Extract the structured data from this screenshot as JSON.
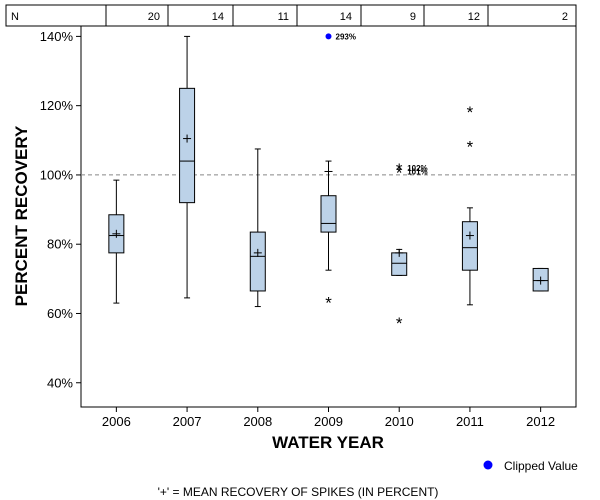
{
  "chart_data": {
    "type": "boxplot",
    "xlabel": "WATER YEAR",
    "ylabel": "PERCENT RECOVERY",
    "ylim": [
      33,
      143
    ],
    "yticks": [
      40,
      60,
      80,
      100,
      120,
      140
    ],
    "ytick_suffix": "%",
    "reference_line": 100,
    "n_header_label": "N",
    "legend": {
      "label": "Clipped Value",
      "color": "#0000ff"
    },
    "footnote": "'+' = MEAN RECOVERY OF SPIKES (IN PERCENT)",
    "categories": [
      {
        "year": "2006",
        "n": "20",
        "whisker_low": 63,
        "q1": 77.5,
        "median": 82.5,
        "q3": 88.5,
        "whisker_high": 98.5,
        "mean": 83,
        "outliers": [],
        "clipped": [],
        "labeled_outliers": []
      },
      {
        "year": "2007",
        "n": "14",
        "whisker_low": 64.5,
        "q1": 92,
        "median": 104,
        "q3": 125,
        "whisker_high": 140,
        "mean": 110.5,
        "outliers": [],
        "clipped": [],
        "labeled_outliers": []
      },
      {
        "year": "2008",
        "n": "11",
        "whisker_low": 62,
        "q1": 66.5,
        "median": 76.5,
        "q3": 83.5,
        "whisker_high": 107.5,
        "mean": 77.5,
        "outliers": [],
        "clipped": [],
        "labeled_outliers": []
      },
      {
        "year": "2009",
        "n": "14",
        "whisker_low": 72.5,
        "q1": 83.5,
        "median": 86,
        "q3": 94,
        "whisker_high": 104,
        "mean": 101,
        "outliers": [
          63.5
        ],
        "clipped": [
          {
            "plot_at": 140,
            "label": "293%"
          }
        ],
        "labeled_outliers": []
      },
      {
        "year": "2010",
        "n": "9",
        "whisker_low": 71,
        "q1": 71,
        "median": 74.5,
        "q3": 77.5,
        "whisker_high": 78.5,
        "mean": 77.5,
        "outliers": [
          57.5
        ],
        "clipped": [],
        "labeled_outliers": [
          {
            "value": 102,
            "label": "102%"
          },
          {
            "value": 101,
            "label": "101%"
          }
        ]
      },
      {
        "year": "2011",
        "n": "12",
        "whisker_low": 62.5,
        "q1": 72.5,
        "median": 79,
        "q3": 86.5,
        "whisker_high": 90.5,
        "mean": 82.5,
        "outliers": [
          118.5,
          108.5
        ],
        "clipped": [],
        "labeled_outliers": []
      },
      {
        "year": "2012",
        "n": "2",
        "whisker_low": 66.5,
        "q1": 66.5,
        "median": 69.5,
        "q3": 73,
        "whisker_high": 73,
        "mean": 69.5,
        "outliers": [],
        "clipped": [],
        "labeled_outliers": []
      }
    ]
  }
}
